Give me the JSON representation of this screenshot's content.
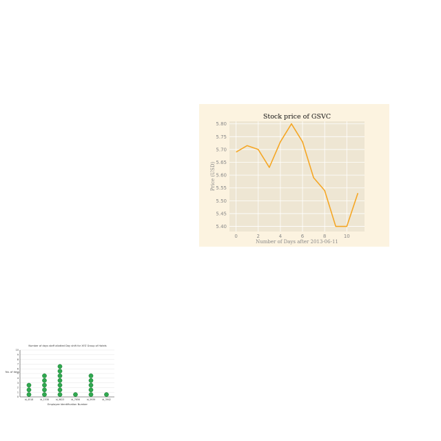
{
  "chart_data": [
    {
      "type": "line",
      "title": "Stock price of GSVC",
      "xlabel": "Number of Days after 2013-06-11",
      "ylabel": "Price (USD)",
      "x": [
        0,
        1,
        2,
        3,
        4,
        5,
        6,
        7,
        8,
        9,
        10,
        11
      ],
      "series": [
        {
          "values": [
            5.69,
            5.715,
            5.7,
            5.63,
            5.73,
            5.8,
            5.73,
            5.59,
            5.54,
            5.4,
            5.4,
            5.53
          ]
        }
      ],
      "xticks": [
        "0",
        "2",
        "4",
        "6",
        "8",
        "10"
      ],
      "yticks": [
        "5.40",
        "5.45",
        "5.50",
        "5.55",
        "5.60",
        "5.65",
        "5.70",
        "5.75",
        "5.80"
      ],
      "xlim": [
        -0.6,
        11.6
      ],
      "ylim": [
        5.38,
        5.81
      ],
      "grid": true,
      "colors": {
        "line": "#f5a623",
        "background": "#fcf3e0",
        "plot": "#eee6d3",
        "grid": "#ffffff",
        "text": "#888888"
      }
    },
    {
      "type": "scatter",
      "title": "Number of days staff allotted Day shift for XYZ Group of Hotels",
      "xlabel": "Employee Identification Number",
      "ylabel": "No. of days",
      "categories": [
        "id_4518",
        "id_1538",
        "id_9823",
        "id_7656",
        "id_5939",
        "id_3942"
      ],
      "values": [
        3,
        5,
        7,
        1,
        5,
        1
      ],
      "yticks": [
        "0",
        "1",
        "2",
        "3",
        "4",
        "5",
        "6",
        "7",
        "8",
        "9",
        "10"
      ],
      "ylim": [
        0,
        10
      ],
      "grid": true,
      "colors": {
        "dot": "#2fa84f",
        "dot_edge": "#1e7a36",
        "grid": "#dddddd",
        "axis": "#333333",
        "text": "#333333"
      }
    }
  ]
}
